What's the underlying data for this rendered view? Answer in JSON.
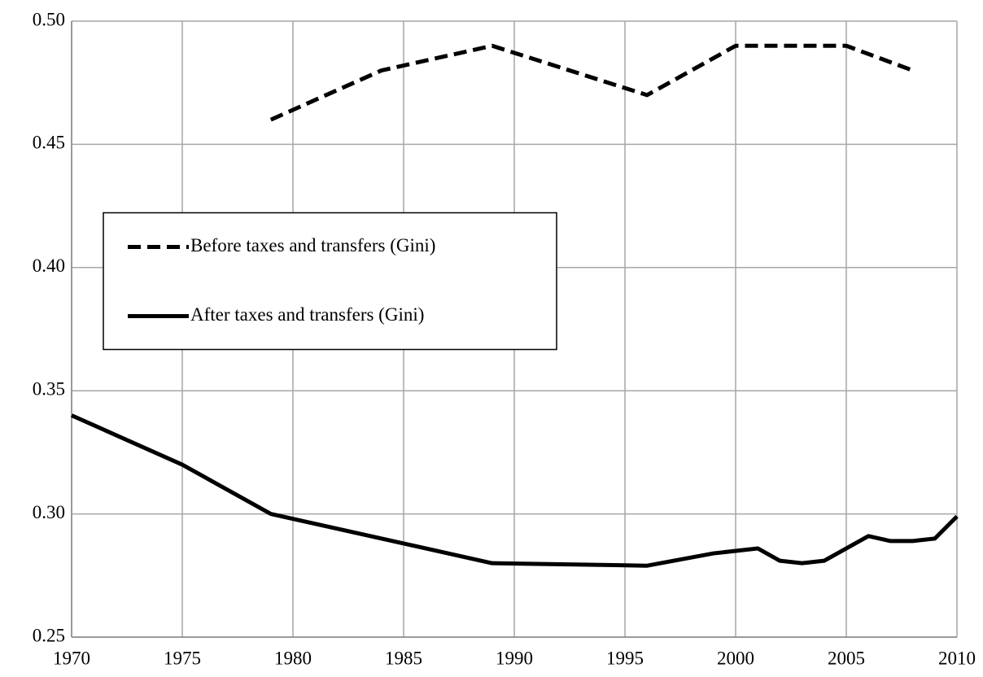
{
  "chart_data": {
    "type": "line",
    "xlim": [
      1970,
      2010
    ],
    "xticks": [
      1970,
      1975,
      1980,
      1985,
      1990,
      1995,
      2000,
      2005,
      2010
    ],
    "ylim": [
      0.25,
      0.5
    ],
    "yticks": [
      {
        "value": 0.25,
        "label": "0.25"
      },
      {
        "value": 0.3,
        "label": "0.30"
      },
      {
        "value": 0.35,
        "label": "0.35"
      },
      {
        "value": 0.4,
        "label": "0.40"
      },
      {
        "value": 0.45,
        "label": "0.45"
      },
      {
        "value": 0.5,
        "label": "0.50"
      }
    ],
    "grid": true,
    "legend": "center-left",
    "series": [
      {
        "name": "Before taxes and transfers (Gini)",
        "color": "#000000",
        "dash": true,
        "x": [
          1979,
          1984,
          1989,
          1996,
          2000,
          2005,
          2008
        ],
        "values": [
          0.46,
          0.48,
          0.49,
          0.47,
          0.49,
          0.49,
          0.48
        ]
      },
      {
        "name": "After taxes and transfers (Gini)",
        "color": "#000000",
        "dash": false,
        "x": [
          1970,
          1975,
          1979,
          1989,
          1996,
          1999,
          2001,
          2002,
          2003,
          2004,
          2006,
          2007,
          2008,
          2009,
          2010
        ],
        "values": [
          0.34,
          0.32,
          0.3,
          0.28,
          0.279,
          0.284,
          0.286,
          0.281,
          0.28,
          0.281,
          0.291,
          0.289,
          0.289,
          0.29,
          0.299
        ]
      }
    ]
  }
}
